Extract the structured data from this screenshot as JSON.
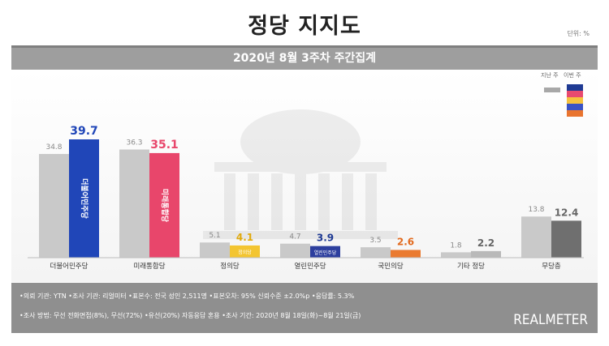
{
  "title": "정당 지지도",
  "unit": "단위: %",
  "subtitle": "2020년 8월 3주차 주간집계",
  "legend": {
    "prev_label": "지난 주",
    "curr_label": "이번 주"
  },
  "colors": {
    "prev": "#c9c9c9",
    "prev_wujiu": "#a9a9a9",
    "curr": [
      "#2046b8",
      "#e8466b",
      "#f3c531",
      "#2d3f9e",
      "#ea7b31",
      "#b9b9b9",
      "#6f6f6f"
    ]
  },
  "chart_data": {
    "type": "bar",
    "categories": [
      "더불어민주당",
      "미래통합당",
      "정의당",
      "열린민주당",
      "국민의당",
      "기타 정당",
      "무당층"
    ],
    "series": [
      {
        "name": "지난 주",
        "values": [
          34.8,
          36.3,
          5.1,
          4.7,
          3.5,
          1.8,
          13.8
        ]
      },
      {
        "name": "이번 주",
        "values": [
          39.7,
          35.1,
          4.1,
          3.9,
          2.6,
          2.2,
          12.4
        ]
      }
    ],
    "ylim": [
      0,
      42
    ],
    "bar_logo_text": [
      "더불어민주당",
      "미래통합당",
      "정의당",
      "열린민주당",
      "",
      "",
      ""
    ]
  },
  "footnotes": [
    "•의뢰 기관: YTN •조사 기관: 리얼미터 •표본수: 전국 성인 2,511명 •표본오차: 95% 신뢰수준 ±2.0%p •응답률: 5.3%",
    "•조사 방법: 무선 전화면접(8%), 무선(72%) •유선(20%) 자동응답 혼용 •조사 기간: 2020년 8월 18일(화)~8월 21일(금)"
  ],
  "brand": "REALMETER"
}
